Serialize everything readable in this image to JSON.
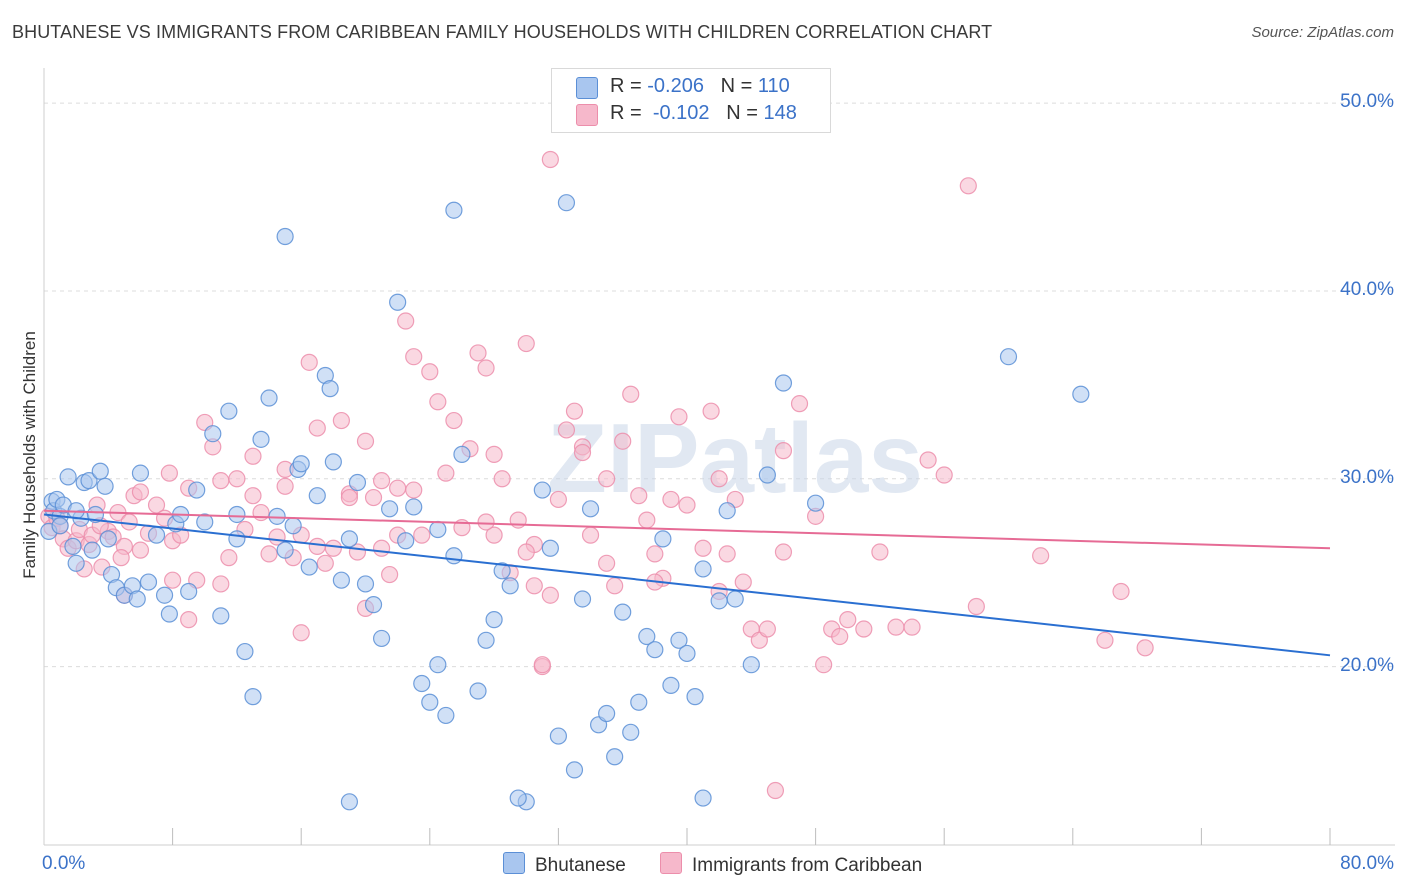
{
  "title": "BHUTANESE VS IMMIGRANTS FROM CARIBBEAN FAMILY HOUSEHOLDS WITH CHILDREN CORRELATION CHART",
  "source": "Source: ZipAtlas.com",
  "watermark": "ZIPatlas",
  "colors": {
    "blue_fill": "#a9c6ef",
    "blue_stroke": "#5b8fd6",
    "blue_line": "#2a6fd1",
    "pink_fill": "#f6b8cb",
    "pink_stroke": "#ec8eab",
    "pink_line": "#e66b95",
    "tick_label": "#3b72c8"
  },
  "legend": {
    "r_label": "R =",
    "n_label": "N =",
    "rows": [
      {
        "r": "-0.206",
        "n": "110"
      },
      {
        "r": "-0.102",
        "n": "148"
      }
    ]
  },
  "chart_data": {
    "type": "scatter",
    "xlabel": "",
    "ylabel": "Family Households with Children",
    "xlim": [
      0,
      80
    ],
    "ylim": [
      10.5,
      51.5
    ],
    "x_tick_labels": [
      {
        "v": 0,
        "label": "0.0%"
      },
      {
        "v": 80,
        "label": "80.0%"
      }
    ],
    "y_tick_labels": [
      {
        "v": 20,
        "label": "20.0%"
      },
      {
        "v": 30,
        "label": "30.0%"
      },
      {
        "v": 40,
        "label": "40.0%"
      },
      {
        "v": 50,
        "label": "50.0%"
      }
    ],
    "x_minor_ticks": [
      8,
      16,
      24,
      32,
      40,
      48,
      56,
      64,
      72,
      80
    ],
    "grid": "horizontal dashed",
    "legend_position": "top-center",
    "series": [
      {
        "name": "Bhutanese",
        "trend": {
          "x0": 0,
          "y0": 28.1,
          "x1": 80,
          "y1": 20.6
        },
        "points": [
          [
            0.3,
            27.2
          ],
          [
            0.5,
            28.8
          ],
          [
            0.6,
            28.3
          ],
          [
            0.8,
            28.9
          ],
          [
            1.0,
            28.0
          ],
          [
            1.2,
            28.6
          ],
          [
            1.5,
            30.1
          ],
          [
            1.8,
            26.4
          ],
          [
            2.0,
            25.5
          ],
          [
            2.3,
            27.9
          ],
          [
            2.5,
            29.8
          ],
          [
            2.8,
            29.9
          ],
          [
            3.0,
            26.2
          ],
          [
            3.2,
            28.1
          ],
          [
            3.5,
            30.4
          ],
          [
            3.8,
            29.6
          ],
          [
            4.0,
            26.8
          ],
          [
            4.2,
            24.9
          ],
          [
            4.5,
            24.2
          ],
          [
            5.0,
            23.8
          ],
          [
            5.5,
            24.3
          ],
          [
            5.8,
            23.6
          ],
          [
            6.0,
            30.3
          ],
          [
            6.5,
            24.5
          ],
          [
            7.0,
            27.0
          ],
          [
            7.5,
            23.8
          ],
          [
            7.8,
            22.8
          ],
          [
            8.2,
            27.6
          ],
          [
            8.5,
            28.1
          ],
          [
            9.0,
            24.0
          ],
          [
            9.5,
            29.4
          ],
          [
            10.0,
            27.7
          ],
          [
            10.5,
            32.4
          ],
          [
            11.0,
            22.7
          ],
          [
            11.5,
            33.6
          ],
          [
            12.0,
            26.8
          ],
          [
            12.5,
            20.8
          ],
          [
            13.0,
            18.4
          ],
          [
            13.5,
            32.1
          ],
          [
            14.0,
            34.3
          ],
          [
            14.5,
            28.0
          ],
          [
            15.0,
            26.2
          ],
          [
            15.5,
            27.5
          ],
          [
            15.8,
            30.5
          ],
          [
            16.0,
            30.8
          ],
          [
            16.5,
            25.3
          ],
          [
            17.0,
            29.1
          ],
          [
            17.5,
            35.5
          ],
          [
            17.8,
            34.8
          ],
          [
            18.0,
            30.9
          ],
          [
            18.5,
            24.6
          ],
          [
            19.0,
            26.8
          ],
          [
            19.5,
            29.8
          ],
          [
            20.0,
            24.4
          ],
          [
            20.5,
            23.3
          ],
          [
            21.0,
            21.5
          ],
          [
            21.5,
            28.4
          ],
          [
            22.0,
            39.4
          ],
          [
            22.5,
            26.7
          ],
          [
            23.0,
            28.5
          ],
          [
            23.5,
            19.1
          ],
          [
            24.0,
            18.1
          ],
          [
            24.5,
            20.1
          ],
          [
            25.0,
            17.4
          ],
          [
            25.5,
            25.9
          ],
          [
            26.0,
            31.3
          ],
          [
            27.0,
            18.7
          ],
          [
            27.5,
            21.4
          ],
          [
            28.0,
            22.5
          ],
          [
            28.5,
            25.1
          ],
          [
            29.0,
            24.3
          ],
          [
            30.0,
            12.8
          ],
          [
            31.0,
            29.4
          ],
          [
            31.5,
            26.3
          ],
          [
            32.0,
            16.3
          ],
          [
            33.0,
            14.5
          ],
          [
            33.5,
            23.6
          ],
          [
            34.0,
            28.4
          ],
          [
            34.5,
            16.9
          ],
          [
            35.0,
            17.5
          ],
          [
            35.5,
            15.2
          ],
          [
            36.0,
            22.9
          ],
          [
            36.5,
            16.5
          ],
          [
            37.0,
            18.1
          ],
          [
            37.5,
            21.6
          ],
          [
            38.0,
            20.9
          ],
          [
            38.5,
            26.8
          ],
          [
            39.0,
            19.0
          ],
          [
            39.5,
            21.4
          ],
          [
            40.0,
            20.7
          ],
          [
            40.5,
            18.4
          ],
          [
            41.0,
            25.2
          ],
          [
            42.0,
            23.5
          ],
          [
            42.5,
            28.3
          ],
          [
            43.0,
            23.6
          ],
          [
            44.0,
            20.1
          ],
          [
            45.0,
            30.2
          ],
          [
            46.0,
            35.1
          ],
          [
            48.0,
            28.7
          ],
          [
            24.5,
            27.3
          ],
          [
            12.0,
            28.1
          ],
          [
            2.0,
            28.3
          ],
          [
            1.0,
            27.5
          ],
          [
            15.0,
            42.9
          ],
          [
            25.5,
            44.3
          ],
          [
            32.5,
            44.7
          ],
          [
            60.0,
            36.5
          ],
          [
            64.5,
            34.5
          ],
          [
            41.0,
            13.0
          ],
          [
            29.5,
            13.0
          ],
          [
            19.0,
            12.8
          ]
        ]
      },
      {
        "name": "Immigrants from Caribbean",
        "trend": {
          "x0": 0,
          "y0": 28.3,
          "x1": 80,
          "y1": 26.3
        },
        "points": [
          [
            0.3,
            28.0
          ],
          [
            0.5,
            27.4
          ],
          [
            0.8,
            27.9
          ],
          [
            1.0,
            27.5
          ],
          [
            1.2,
            26.8
          ],
          [
            1.5,
            26.3
          ],
          [
            2.0,
            26.7
          ],
          [
            2.2,
            27.3
          ],
          [
            2.5,
            25.2
          ],
          [
            2.8,
            26.5
          ],
          [
            3.0,
            27.0
          ],
          [
            3.3,
            28.6
          ],
          [
            3.6,
            25.3
          ],
          [
            4.0,
            27.2
          ],
          [
            4.3,
            26.9
          ],
          [
            4.6,
            28.2
          ],
          [
            5.0,
            26.4
          ],
          [
            5.3,
            27.7
          ],
          [
            5.6,
            29.1
          ],
          [
            6.0,
            26.2
          ],
          [
            6.5,
            27.1
          ],
          [
            7.0,
            28.6
          ],
          [
            7.5,
            27.9
          ],
          [
            7.8,
            30.3
          ],
          [
            8.0,
            26.7
          ],
          [
            8.5,
            27.0
          ],
          [
            9.0,
            29.5
          ],
          [
            9.5,
            24.6
          ],
          [
            10.0,
            33.0
          ],
          [
            10.5,
            31.7
          ],
          [
            11.0,
            29.9
          ],
          [
            11.5,
            25.8
          ],
          [
            12.0,
            30.0
          ],
          [
            12.5,
            27.3
          ],
          [
            13.0,
            29.1
          ],
          [
            13.5,
            28.2
          ],
          [
            14.0,
            26.0
          ],
          [
            14.5,
            26.9
          ],
          [
            15.0,
            30.5
          ],
          [
            15.5,
            25.8
          ],
          [
            16.0,
            27.0
          ],
          [
            16.5,
            36.2
          ],
          [
            17.0,
            32.7
          ],
          [
            17.5,
            25.5
          ],
          [
            18.0,
            26.3
          ],
          [
            18.5,
            33.1
          ],
          [
            19.0,
            29.2
          ],
          [
            19.5,
            26.1
          ],
          [
            20.0,
            32.0
          ],
          [
            20.5,
            29.0
          ],
          [
            21.0,
            26.3
          ],
          [
            21.5,
            24.9
          ],
          [
            22.0,
            29.5
          ],
          [
            22.5,
            38.4
          ],
          [
            23.0,
            36.5
          ],
          [
            23.5,
            27.0
          ],
          [
            24.0,
            35.7
          ],
          [
            24.5,
            34.1
          ],
          [
            25.0,
            30.3
          ],
          [
            25.5,
            33.1
          ],
          [
            26.0,
            27.4
          ],
          [
            26.5,
            31.6
          ],
          [
            27.0,
            36.7
          ],
          [
            27.5,
            35.9
          ],
          [
            28.0,
            27.0
          ],
          [
            28.5,
            30.0
          ],
          [
            29.0,
            25.0
          ],
          [
            29.5,
            27.8
          ],
          [
            30.0,
            37.2
          ],
          [
            30.5,
            26.5
          ],
          [
            31.0,
            20.0
          ],
          [
            31.5,
            23.8
          ],
          [
            32.0,
            28.9
          ],
          [
            32.5,
            32.6
          ],
          [
            33.0,
            33.6
          ],
          [
            33.5,
            31.7
          ],
          [
            34.0,
            27.0
          ],
          [
            35.0,
            30.0
          ],
          [
            35.5,
            24.3
          ],
          [
            36.0,
            32.0
          ],
          [
            36.5,
            34.5
          ],
          [
            37.0,
            29.1
          ],
          [
            37.5,
            27.8
          ],
          [
            38.0,
            26.0
          ],
          [
            38.5,
            24.7
          ],
          [
            39.0,
            28.9
          ],
          [
            39.5,
            33.3
          ],
          [
            40.0,
            28.6
          ],
          [
            41.0,
            26.3
          ],
          [
            41.5,
            33.6
          ],
          [
            42.0,
            24.0
          ],
          [
            42.5,
            26.0
          ],
          [
            43.0,
            28.9
          ],
          [
            43.5,
            24.5
          ],
          [
            44.0,
            22.0
          ],
          [
            44.5,
            21.4
          ],
          [
            45.0,
            22.0
          ],
          [
            46.0,
            26.1
          ],
          [
            47.0,
            34.0
          ],
          [
            48.0,
            28.0
          ],
          [
            48.5,
            20.1
          ],
          [
            49.0,
            22.0
          ],
          [
            49.5,
            21.6
          ],
          [
            50.0,
            22.5
          ],
          [
            51.0,
            22.0
          ],
          [
            52.0,
            26.1
          ],
          [
            53.0,
            22.1
          ],
          [
            54.0,
            22.1
          ],
          [
            55.0,
            31.0
          ],
          [
            56.0,
            30.2
          ],
          [
            58.0,
            23.2
          ],
          [
            62.0,
            25.9
          ],
          [
            66.0,
            21.4
          ],
          [
            67.0,
            24.0
          ],
          [
            68.5,
            21.0
          ],
          [
            30.5,
            24.3
          ],
          [
            31.0,
            20.1
          ],
          [
            16.0,
            21.8
          ],
          [
            6.0,
            29.3
          ],
          [
            20.0,
            23.1
          ],
          [
            23.0,
            29.4
          ],
          [
            13.0,
            31.2
          ],
          [
            27.5,
            27.7
          ],
          [
            19.0,
            29.0
          ],
          [
            11.0,
            24.4
          ],
          [
            3.5,
            27.5
          ],
          [
            5.0,
            23.8
          ],
          [
            9.0,
            22.5
          ],
          [
            15.0,
            29.6
          ],
          [
            22.0,
            27.0
          ],
          [
            28.0,
            31.3
          ],
          [
            35.0,
            25.5
          ],
          [
            42.0,
            30.0
          ],
          [
            46.0,
            31.5
          ],
          [
            38.0,
            24.5
          ],
          [
            17.0,
            26.4
          ],
          [
            21.0,
            29.9
          ],
          [
            8.0,
            24.6
          ],
          [
            4.8,
            25.8
          ],
          [
            33.5,
            31.4
          ],
          [
            31.5,
            47.0
          ],
          [
            57.5,
            45.6
          ],
          [
            45.5,
            13.4
          ],
          [
            30.0,
            26.1
          ]
        ]
      }
    ]
  }
}
